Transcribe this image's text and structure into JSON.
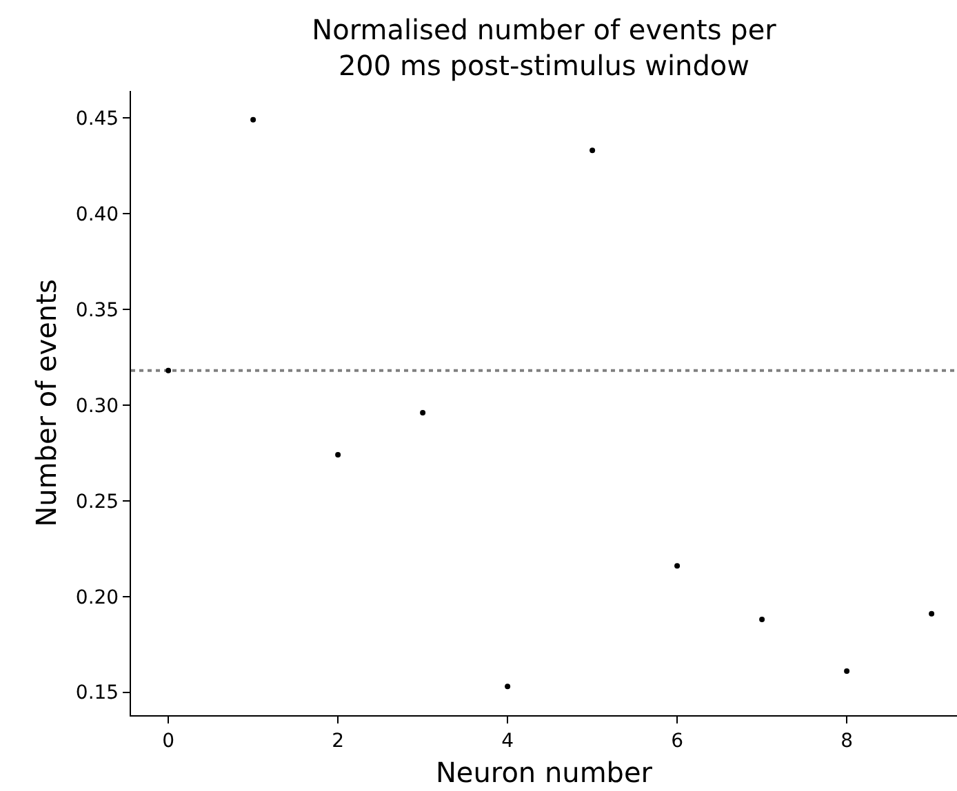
{
  "chart_data": {
    "type": "scatter",
    "title": "Normalised number of events per\n200 ms post-stimulus window",
    "xlabel": "Neuron number",
    "ylabel": "Number of events",
    "x": [
      0,
      1,
      2,
      3,
      4,
      5,
      6,
      7,
      8,
      9
    ],
    "series": [
      {
        "color": "#000000",
        "values": [
          0.318,
          0.449,
          0.274,
          0.296,
          0.153,
          0.433,
          0.216,
          0.188,
          0.161,
          0.191
        ]
      }
    ],
    "xlim": [
      -0.44,
      9.3
    ],
    "ylim": [
      0.138,
      0.464
    ],
    "xticks": [
      0,
      2,
      4,
      6,
      8
    ],
    "yticks": [
      0.15,
      {
        "value": 0.2,
        "label": "0.20"
      },
      0.25,
      {
        "value": 0.3,
        "label": "0.30"
      },
      0.35,
      {
        "value": 0.4,
        "label": "0.40"
      },
      0.45
    ],
    "ref_lines": [
      {
        "axis": "y",
        "value": 0.318,
        "color": "#808080",
        "line_style": "dotted"
      }
    ],
    "marker": "circle",
    "grid": false
  }
}
